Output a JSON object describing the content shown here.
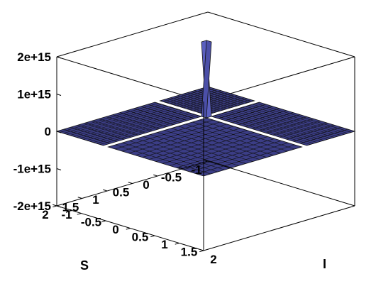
{
  "chart_data": {
    "type": "surface3d",
    "xlabel": "S",
    "ylabel": "I",
    "zlabel": "",
    "x_ticks": [
      "-1",
      "-0.5",
      "0",
      "0.5",
      "1",
      "1.5",
      "2"
    ],
    "y_ticks": [
      "-1",
      "-0.5",
      "0",
      "0.5",
      "1",
      "1.5",
      "2"
    ],
    "z_ticks": [
      "2e+15",
      "1e+15",
      "0",
      "-1e+15",
      "-2e+15"
    ],
    "xlim": [
      -1,
      2
    ],
    "ylim": [
      -1,
      2
    ],
    "zlim": [
      -2000000000000000.0,
      2000000000000000.0
    ],
    "surface_color": "#3b3d86",
    "surface": {
      "description_of_regions": "Surface is approximately 0 everywhere except near the lines S=0 and I=0 where it spikes toward large positive values",
      "regions": [
        {
          "S_range": [
            -1,
            -0.05
          ],
          "I_range": [
            -1,
            -0.05
          ],
          "z": 0
        },
        {
          "S_range": [
            0.05,
            2
          ],
          "I_range": [
            -1,
            -0.05
          ],
          "z": 0
        },
        {
          "S_range": [
            -1,
            -0.05
          ],
          "I_range": [
            0.05,
            2
          ],
          "z": 0
        },
        {
          "S_range": [
            0.05,
            2
          ],
          "I_range": [
            0.05,
            2
          ],
          "z": 0
        }
      ],
      "spike": {
        "S": 0,
        "I": 0,
        "z_peak": 2000000000000000.0
      }
    }
  }
}
